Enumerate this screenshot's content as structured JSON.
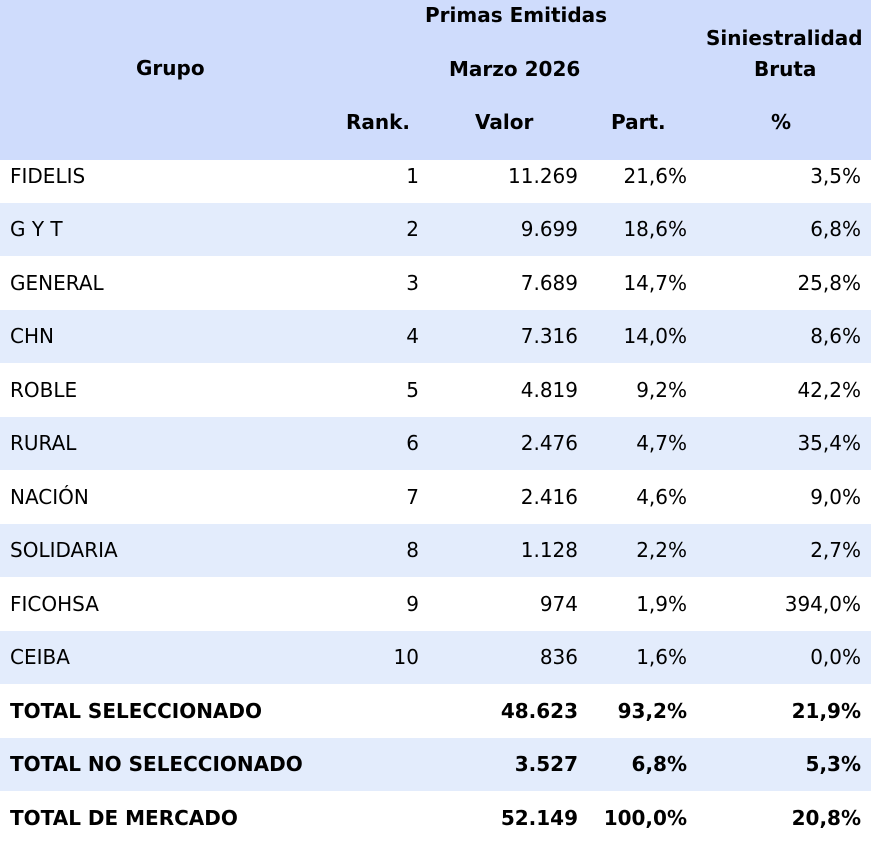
{
  "header": {
    "grupo": "Grupo",
    "primas": "Primas Emitidas",
    "period": "Marzo 2026",
    "rank": "Rank.",
    "valor": "Valor",
    "part": "Part.",
    "sin1": "Siniestralidad",
    "sin2": "Bruta",
    "pct": "%"
  },
  "rows": [
    {
      "name": "FIDELIS",
      "rank": "1",
      "valor": "11.269",
      "part": "21,6%",
      "sin": "3,5%"
    },
    {
      "name": "G Y T",
      "rank": "2",
      "valor": "9.699",
      "part": "18,6%",
      "sin": "6,8%"
    },
    {
      "name": "GENERAL",
      "rank": "3",
      "valor": "7.689",
      "part": "14,7%",
      "sin": "25,8%"
    },
    {
      "name": "CHN",
      "rank": "4",
      "valor": "7.316",
      "part": "14,0%",
      "sin": "8,6%"
    },
    {
      "name": "ROBLE",
      "rank": "5",
      "valor": "4.819",
      "part": "9,2%",
      "sin": "42,2%"
    },
    {
      "name": "RURAL",
      "rank": "6",
      "valor": "2.476",
      "part": "4,7%",
      "sin": "35,4%"
    },
    {
      "name": "NACIÓN",
      "rank": "7",
      "valor": "2.416",
      "part": "4,6%",
      "sin": "9,0%"
    },
    {
      "name": "SOLIDARIA",
      "rank": "8",
      "valor": "1.128",
      "part": "2,2%",
      "sin": "2,7%"
    },
    {
      "name": "FICOHSA",
      "rank": "9",
      "valor": "974",
      "part": "1,9%",
      "sin": "394,0%"
    },
    {
      "name": "CEIBA",
      "rank": "10",
      "valor": "836",
      "part": "1,6%",
      "sin": "0,0%"
    }
  ],
  "totals": [
    {
      "name": "TOTAL SELECCIONADO",
      "rank": "",
      "valor": "48.623",
      "part": "93,2%",
      "sin": "21,9%"
    },
    {
      "name": "TOTAL NO SELECCIONADO",
      "rank": "",
      "valor": "3.527",
      "part": "6,8%",
      "sin": "5,3%"
    },
    {
      "name": "TOTAL DE MERCADO",
      "rank": "",
      "valor": "52.149",
      "part": "100,0%",
      "sin": "20,8%"
    }
  ]
}
